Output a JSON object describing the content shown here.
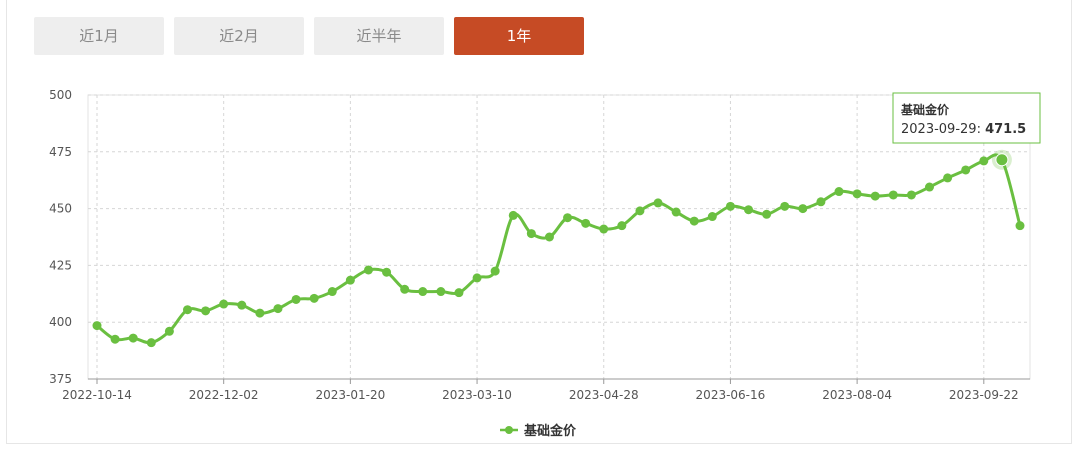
{
  "tabs": [
    {
      "label": "近1月",
      "active": false
    },
    {
      "label": "近2月",
      "active": false
    },
    {
      "label": "近半年",
      "active": false
    },
    {
      "label": "1年",
      "active": true
    }
  ],
  "colors": {
    "series": "#6abf40",
    "active_tab": "#c64b25",
    "grid": "#d6d6d6"
  },
  "tooltip": {
    "title": "基础金价",
    "date": "2023-09-29",
    "value": "471.5"
  },
  "chart_data": {
    "type": "line",
    "title": "",
    "xlabel": "",
    "ylabel": "",
    "ylim": [
      375,
      500
    ],
    "yticks": [
      375,
      400,
      425,
      450,
      475,
      500
    ],
    "xtick_labels": [
      "2022-10-14",
      "2022-12-02",
      "2023-01-20",
      "2023-03-10",
      "2023-04-28",
      "2023-06-16",
      "2023-08-04",
      "2023-09-22"
    ],
    "grid": true,
    "legend": "bottom-center",
    "series": [
      {
        "name": "基础金价",
        "values": [
          398.5,
          392.5,
          393,
          391,
          396,
          405.5,
          405,
          408,
          407.5,
          404,
          406,
          410,
          410.5,
          413.5,
          418.5,
          423,
          422,
          414.5,
          413.5,
          413.5,
          413,
          419.5,
          422.5,
          447,
          439,
          437.5,
          446,
          443.5,
          441,
          442.5,
          449,
          452.5,
          448.5,
          444.5,
          446.5,
          451,
          449.5,
          447.5,
          451,
          450,
          453,
          457.5,
          456.5,
          455.5,
          456,
          456,
          459.5,
          463.5,
          467,
          471,
          471.5,
          442.5
        ]
      }
    ]
  }
}
